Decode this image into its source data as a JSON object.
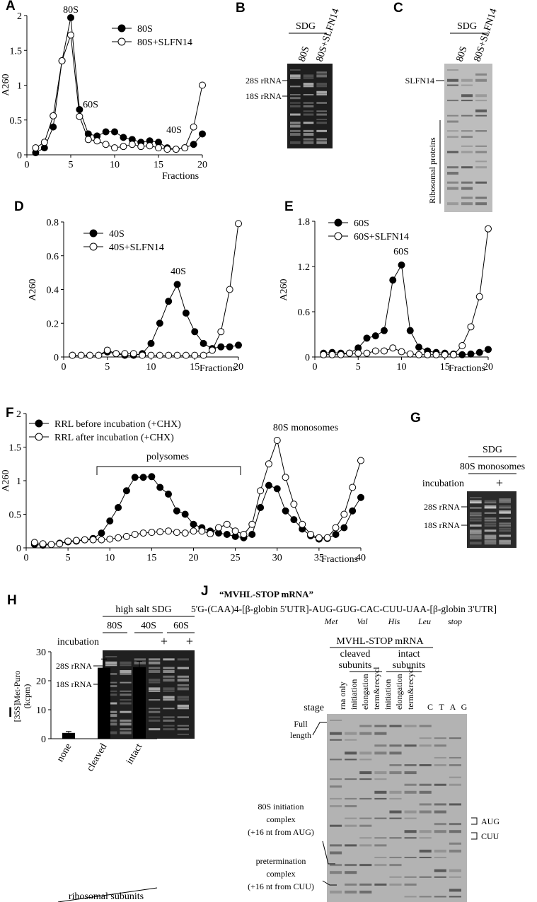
{
  "chart_data": [
    {
      "type": "line",
      "panel": "A",
      "ylabel": "A260",
      "xlabel": "Fractions",
      "annotations": [
        "80S",
        "60S",
        "40S"
      ],
      "x": [
        1,
        2,
        3,
        4,
        5,
        6,
        7,
        8,
        9,
        10,
        11,
        12,
        13,
        14,
        15,
        16,
        17,
        18,
        19,
        20
      ],
      "xlim": [
        0,
        20
      ],
      "xticks": [
        0,
        5,
        10,
        15,
        20
      ],
      "ylim": [
        0,
        2
      ],
      "yticks": [
        0,
        0.5,
        1,
        1.5,
        2
      ],
      "series": [
        {
          "name": "80S",
          "color": "#000000",
          "values": [
            0.03,
            0.1,
            0.4,
            1.35,
            1.97,
            0.65,
            0.3,
            0.27,
            0.33,
            0.33,
            0.25,
            0.22,
            0.18,
            0.2,
            0.18,
            0.1,
            0.08,
            0.1,
            0.15,
            0.3
          ]
        },
        {
          "name": "80S+SLFN14",
          "color": "#ffffff",
          "values": [
            0.1,
            0.18,
            0.56,
            1.35,
            1.72,
            0.55,
            0.22,
            0.2,
            0.15,
            0.1,
            0.12,
            0.15,
            0.12,
            0.13,
            0.1,
            0.08,
            0.08,
            0.1,
            0.4,
            1.0
          ]
        }
      ]
    },
    {
      "type": "line",
      "panel": "D",
      "ylabel": "A260",
      "xlabel": "Fractions",
      "annotations": [
        "40S"
      ],
      "x": [
        1,
        2,
        3,
        4,
        5,
        6,
        7,
        8,
        9,
        10,
        11,
        12,
        13,
        14,
        15,
        16,
        17,
        18,
        19,
        20
      ],
      "xlim": [
        0,
        20
      ],
      "xticks": [
        0,
        5,
        10,
        15,
        20
      ],
      "ylim": [
        0,
        0.8
      ],
      "yticks": [
        0,
        0.2,
        0.4,
        0.6,
        0.8
      ],
      "series": [
        {
          "name": "40S",
          "color": "#000000",
          "values": [
            0.01,
            0.01,
            0.01,
            0.01,
            0.03,
            0.02,
            0.01,
            0.01,
            0.02,
            0.08,
            0.2,
            0.33,
            0.43,
            0.26,
            0.15,
            0.08,
            0.05,
            0.06,
            0.06,
            0.07
          ]
        },
        {
          "name": "40S+SLFN14",
          "color": "#ffffff",
          "values": [
            0.01,
            0.01,
            0.01,
            0.01,
            0.04,
            0.02,
            0.02,
            0.02,
            0.01,
            0.01,
            0.01,
            0.01,
            0.01,
            0.01,
            0.01,
            0.01,
            0.04,
            0.15,
            0.4,
            0.79
          ]
        }
      ]
    },
    {
      "type": "line",
      "panel": "E",
      "ylabel": "A260",
      "xlabel": "Fractions",
      "annotations": [
        "60S"
      ],
      "x": [
        1,
        2,
        3,
        4,
        5,
        6,
        7,
        8,
        9,
        10,
        11,
        12,
        13,
        14,
        15,
        16,
        17,
        18,
        19,
        20
      ],
      "xlim": [
        0,
        20
      ],
      "xticks": [
        0,
        5,
        10,
        15,
        20
      ],
      "ylim": [
        0,
        1.8
      ],
      "yticks": [
        0,
        0.6,
        1.2,
        1.8
      ],
      "series": [
        {
          "name": "60S",
          "color": "#000000",
          "values": [
            0.05,
            0.06,
            0.05,
            0.05,
            0.12,
            0.25,
            0.28,
            0.35,
            1.02,
            1.22,
            0.35,
            0.13,
            0.08,
            0.06,
            0.05,
            0.04,
            0.03,
            0.04,
            0.06,
            0.1
          ]
        },
        {
          "name": "60S+SLFN14",
          "color": "#ffffff",
          "values": [
            0.03,
            0.03,
            0.03,
            0.05,
            0.05,
            0.05,
            0.08,
            0.08,
            0.12,
            0.07,
            0.04,
            0.03,
            0.03,
            0.03,
            0.03,
            0.03,
            0.15,
            0.4,
            0.8,
            1.7
          ]
        }
      ]
    },
    {
      "type": "line",
      "panel": "F",
      "ylabel": "A260",
      "xlabel": "Fractions",
      "annotations": [
        "80S monosomes",
        "polysomes"
      ],
      "x": [
        1,
        2,
        3,
        4,
        5,
        6,
        7,
        8,
        9,
        10,
        11,
        12,
        13,
        14,
        15,
        16,
        17,
        18,
        19,
        20,
        21,
        22,
        23,
        24,
        25,
        26,
        27,
        28,
        29,
        30,
        31,
        32,
        33,
        34,
        35,
        36,
        37,
        38,
        39,
        40
      ],
      "xlim": [
        0,
        40
      ],
      "xticks": [
        0,
        5,
        10,
        15,
        20,
        25,
        30,
        35,
        40
      ],
      "ylim": [
        0,
        2
      ],
      "yticks": [
        0,
        0.5,
        1,
        1.5,
        2
      ],
      "series": [
        {
          "name": "RRL before incubation (+CHX)",
          "color": "#000000",
          "values": [
            0.05,
            0.04,
            0.05,
            0.07,
            0.09,
            0.1,
            0.12,
            0.14,
            0.22,
            0.4,
            0.6,
            0.85,
            1.05,
            1.05,
            1.06,
            0.9,
            0.8,
            0.55,
            0.5,
            0.35,
            0.3,
            0.25,
            0.22,
            0.2,
            0.17,
            0.15,
            0.2,
            0.6,
            0.93,
            0.88,
            0.55,
            0.42,
            0.28,
            0.18,
            0.13,
            0.14,
            0.2,
            0.3,
            0.55,
            0.75
          ]
        },
        {
          "name": "RRL after incubation (+CHX)",
          "color": "#ffffff",
          "values": [
            0.08,
            0.06,
            0.05,
            0.06,
            0.1,
            0.11,
            0.12,
            0.12,
            0.12,
            0.13,
            0.15,
            0.17,
            0.2,
            0.22,
            0.23,
            0.24,
            0.25,
            0.23,
            0.22,
            0.25,
            0.25,
            0.21,
            0.3,
            0.35,
            0.25,
            0.2,
            0.35,
            0.85,
            1.25,
            1.6,
            1.05,
            0.65,
            0.35,
            0.2,
            0.15,
            0.15,
            0.3,
            0.5,
            0.9,
            1.3
          ]
        }
      ]
    },
    {
      "type": "bar",
      "panel": "I",
      "ylabel": [
        "[35S]Met-Puro",
        "(kcpm)"
      ],
      "xlabel": "ribosomal subunits",
      "color": "#000000",
      "categories": [
        "none",
        "cleaved",
        "intact"
      ],
      "values": [
        2,
        24.5,
        24.7
      ],
      "errors": [
        0.5,
        3,
        2
      ],
      "ylim": [
        0,
        30
      ],
      "yticks": [
        0,
        10,
        20,
        30
      ]
    }
  ],
  "gels": {
    "B": {
      "label": "B",
      "header": "SDG",
      "lanes": [
        "80S",
        "80S+SLFN14"
      ],
      "markers": [
        "28S rRNA",
        "18S rRNA"
      ]
    },
    "C": {
      "label": "C",
      "header": "SDG",
      "lanes": [
        "80S",
        "80S+SLFN14"
      ],
      "markers": [
        "SLFN14"
      ],
      "side_label": "Ribosomal proteins"
    },
    "G": {
      "label": "G",
      "header": "SDG",
      "subheader": "80S monosomes",
      "row_label": "incubation",
      "row_marks": [
        "+"
      ],
      "markers": [
        "28S rRNA",
        "18S rRNA"
      ]
    },
    "H": {
      "label": "H",
      "header": "high salt SDG",
      "lanes": [
        "80S",
        "40S",
        "60S"
      ],
      "row_label": "incubation",
      "row_marks": [
        "+",
        "+"
      ],
      "markers": [
        "28S rRNA",
        "18S rRNA"
      ]
    },
    "J": {
      "label": "J",
      "title": "“MVHL-STOP mRNA”",
      "construct": "5'G-(CAA)4-[β-globin 5'UTR]-AUG-GUG-CAC-CUU-UAA-[β-globin 3'UTR]",
      "codons": [
        "Met",
        "Val",
        "His",
        "Leu",
        "stop"
      ],
      "header": "MVHL-STOP mRNA",
      "groups": [
        [
          "cleaved",
          "subunits"
        ],
        [
          "intact",
          "subunits"
        ]
      ],
      "row_label": "stage",
      "lanes": [
        "rna only",
        "initiation",
        "elongation",
        "term&recycl",
        "initiation",
        "elongation",
        "term&recycl"
      ],
      "sequencing": [
        "C",
        "T",
        "A",
        "G"
      ],
      "left_labels": [
        [
          "Full",
          "length"
        ],
        [
          "80S initiation",
          "complex",
          "(+16 nt from AUG)"
        ],
        [
          "pretermination",
          "complex",
          "(+16 nt from CUU)"
        ]
      ],
      "right_labels": [
        "AUG",
        "CUU"
      ]
    }
  }
}
